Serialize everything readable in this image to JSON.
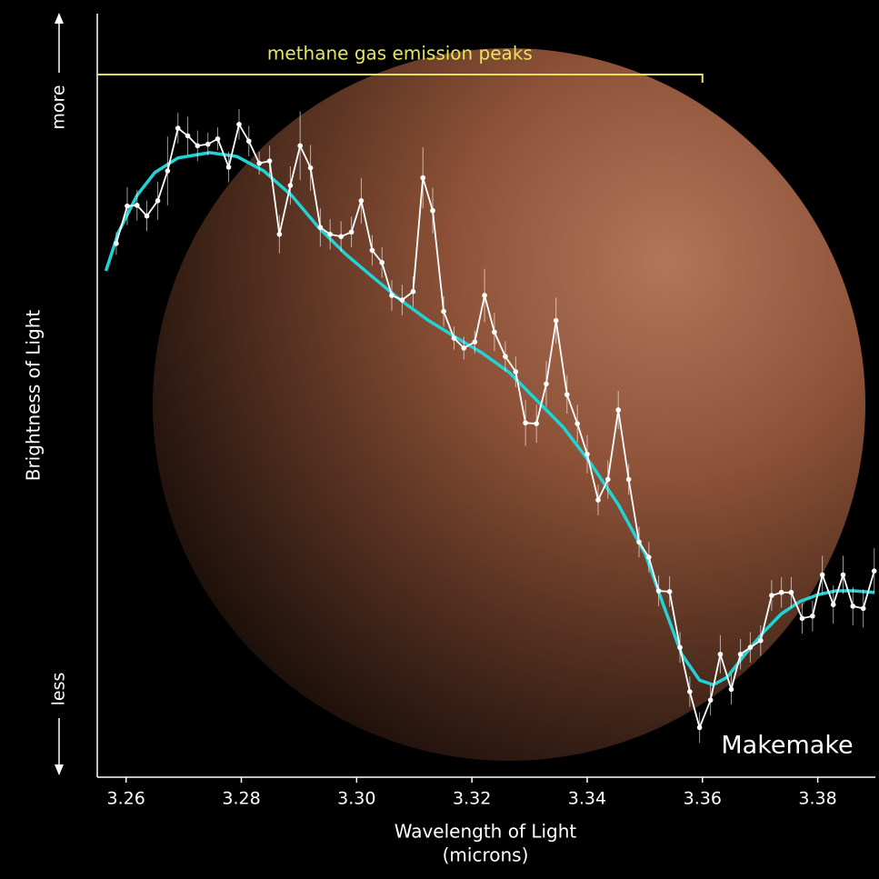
{
  "chart_data": {
    "type": "line",
    "annotation": {
      "text": "methane gas emission peaks",
      "x_end": 3.36,
      "color": "#e6e65c"
    },
    "label": "Makemake",
    "y_label": "Brightness of Light",
    "y_top_label": "more",
    "y_bottom_label": "less",
    "x_label": [
      "Wavelength of Light",
      "(microns)"
    ],
    "xlim": [
      3.255,
      3.39
    ],
    "ylim": [
      0,
      100
    ],
    "xticks": [
      3.26,
      3.28,
      {
        "value": 3.3,
        "label": "3.30"
      },
      3.32,
      3.34,
      3.36,
      3.38
    ],
    "series": [
      {
        "color": "#ffffff",
        "x": [
          3.2583,
          3.2602,
          3.2619,
          3.2636,
          3.2655,
          3.2672,
          3.269,
          3.2707,
          3.2724,
          3.2742,
          3.2759,
          3.2778,
          3.2796,
          3.2813,
          3.2831,
          3.2849,
          3.2866,
          3.2885,
          3.2902,
          3.292,
          3.2937,
          3.2954,
          3.2973,
          3.2991,
          3.3008,
          3.3027,
          3.3044,
          3.3061,
          3.3079,
          3.3098,
          3.3115,
          3.3132,
          3.3151,
          3.3169,
          3.3186,
          3.3205,
          3.3222,
          3.3239,
          3.3258,
          3.3276,
          3.3293,
          3.3312,
          3.3329,
          3.3346,
          3.3365,
          3.3383,
          3.34,
          3.3419,
          3.3436,
          3.3454,
          3.3472,
          3.349,
          3.3507,
          3.3524,
          3.3543,
          3.3561,
          3.3578,
          3.3595,
          3.3614,
          3.3631,
          3.365,
          3.3666,
          3.3683,
          3.3701,
          3.372,
          3.3737,
          3.3754,
          3.3773,
          3.3791,
          3.3808,
          3.3827,
          3.3844,
          3.3861,
          3.3879,
          3.3898
        ],
        "values": [
          69.9,
          74.8,
          74.9,
          73.5,
          75.5,
          79.4,
          85.0,
          84.0,
          82.7,
          82.9,
          83.6,
          79.9,
          85.5,
          83.3,
          80.4,
          80.7,
          71.1,
          77.5,
          82.7,
          79.8,
          72.0,
          71.1,
          70.8,
          71.4,
          75.5,
          69.0,
          67.4,
          63.1,
          62.5,
          63.6,
          78.5,
          74.2,
          61.0,
          57.5,
          56.2,
          57.0,
          63.1,
          58.3,
          55.1,
          53.1,
          46.4,
          46.3,
          51.5,
          59.8,
          50.1,
          46.3,
          42.3,
          36.3,
          39.0,
          48.1,
          39.0,
          30.8,
          28.8,
          24.4,
          24.3,
          17.0,
          11.2,
          6.5,
          10.1,
          16.1,
          11.5,
          16.1,
          17.0,
          17.9,
          23.8,
          24.2,
          24.2,
          20.8,
          21.1,
          26.5,
          22.6,
          26.5,
          22.4,
          22.1,
          27.0
        ],
        "errors": [
          1.5,
          2.5,
          2.0,
          2.0,
          2.5,
          4.5,
          2.0,
          2.5,
          2.0,
          1.5,
          1.5,
          2.0,
          2.0,
          2.0,
          1.5,
          2.0,
          2.5,
          2.5,
          4.5,
          3.0,
          2.5,
          2.0,
          2.0,
          2.0,
          3.0,
          2.0,
          2.0,
          2.0,
          2.0,
          2.0,
          4.0,
          3.0,
          2.0,
          1.5,
          1.5,
          1.5,
          3.5,
          2.5,
          2.0,
          2.0,
          3.0,
          2.5,
          3.0,
          3.0,
          2.5,
          2.5,
          2.5,
          2.0,
          2.5,
          2.5,
          2.0,
          2.0,
          2.0,
          2.0,
          2.0,
          2.0,
          2.0,
          2.0,
          2.0,
          2.5,
          2.0,
          2.0,
          2.0,
          2.0,
          2.0,
          2.0,
          2.0,
          2.0,
          2.0,
          2.5,
          2.5,
          2.5,
          2.5,
          2.5,
          3.0
        ]
      },
      {
        "color": "#22d3d6",
        "x": [
          3.2565,
          3.2587,
          3.2619,
          3.265,
          3.269,
          3.2745,
          3.2792,
          3.2839,
          3.2887,
          3.2934,
          3.2981,
          3.3028,
          3.3076,
          3.3123,
          3.317,
          3.3217,
          3.3265,
          3.3312,
          3.3359,
          3.3406,
          3.3454,
          3.3501,
          3.3532,
          3.3564,
          3.3595,
          3.3619,
          3.3643,
          3.3674,
          3.3706,
          3.3737,
          3.3769,
          3.38,
          3.3831,
          3.3863,
          3.3898
        ],
        "values": [
          66.3,
          71.4,
          76.2,
          79.2,
          81.1,
          81.8,
          81.3,
          79.4,
          76.2,
          72.0,
          68.5,
          65.5,
          62.5,
          59.9,
          57.7,
          55.6,
          53.0,
          49.4,
          45.8,
          41.1,
          35.7,
          29.2,
          22.6,
          16.1,
          12.7,
          12.1,
          13.1,
          16.1,
          19.0,
          21.4,
          23.0,
          23.9,
          24.4,
          24.4,
          24.2
        ]
      }
    ]
  }
}
